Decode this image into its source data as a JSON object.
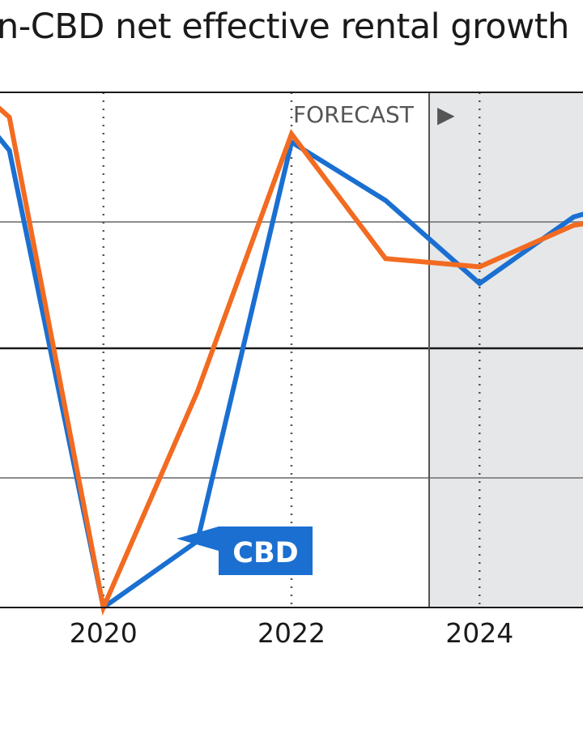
{
  "chart_data": {
    "type": "line",
    "title": "n-CBD net effective rental growth",
    "x": [
      2018.5,
      2019,
      2020,
      2021,
      2022,
      2023,
      2024,
      2025,
      2025.6
    ],
    "series": [
      {
        "name": "CBD",
        "color": "#1a6fd1",
        "values": [
          4.2,
          3.5,
          -2.0,
          -1.2,
          3.6,
          2.9,
          1.9,
          2.7,
          2.9
        ]
      },
      {
        "name": "",
        "color": "#f26b21",
        "values": [
          4.4,
          3.9,
          -2.0,
          0.6,
          3.7,
          2.2,
          2.1,
          2.6,
          2.7
        ]
      }
    ],
    "xticks": [
      "2020",
      "2022",
      "2024"
    ],
    "forecast_label": "FORECAST",
    "forecast_arrow": "▶",
    "xlim": [
      2018.9,
      2025.1
    ],
    "ylim": [
      -2.0,
      4.2
    ],
    "grid": true,
    "colors": {
      "forecast_shade": "#e6e7e9",
      "grid": "#8c8c8c",
      "zero_line": "#1a1a1a"
    }
  }
}
